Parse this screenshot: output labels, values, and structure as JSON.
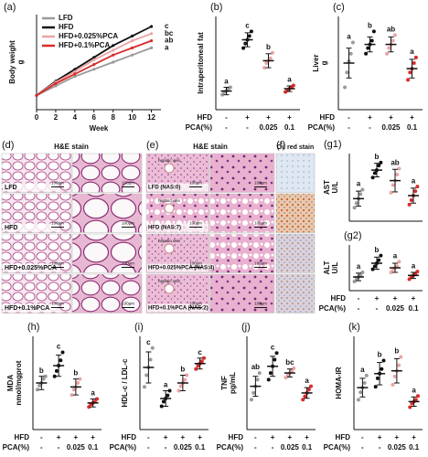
{
  "chart_data": [
    {
      "type": "line",
      "panel": "(a)",
      "ylabel": "Body weight",
      "yunit": "g",
      "xlabel": "Week",
      "x": [
        0,
        2,
        4,
        6,
        8,
        10,
        12
      ],
      "xlim": [
        0,
        13
      ],
      "xticks": [
        0,
        2,
        4,
        6,
        8,
        10,
        12
      ],
      "ylim": [
        15,
        35
      ],
      "series": [
        {
          "name": "LFD",
          "color": "#9a9a9a",
          "values": [
            18,
            20,
            22,
            23.5,
            25,
            26.5,
            28
          ],
          "letter": "a"
        },
        {
          "name": "HFD",
          "color": "#111111",
          "values": [
            18,
            21,
            23.5,
            26,
            28.5,
            30.5,
            32.5
          ],
          "letter": "c"
        },
        {
          "name": "HFD+0.025%PCA",
          "color": "#eba3a3",
          "values": [
            18,
            20.8,
            23,
            25.5,
            27.5,
            29.5,
            31
          ],
          "letter": "bc"
        },
        {
          "name": "HFD+0.1%PCA",
          "color": "#d92b2b",
          "values": [
            18,
            20.5,
            22.5,
            24.5,
            26.5,
            28,
            29.5
          ],
          "letter": "ab"
        }
      ]
    },
    {
      "type": "dotplot",
      "panel": "(b)",
      "ylabel": "Intraperitoneal fat",
      "ylim": [
        0.4,
        2.4
      ],
      "groups": [
        {
          "color": "#9a9a9a",
          "mean": 0.8,
          "sd": 0.08,
          "points": [
            0.72,
            0.78,
            0.8,
            0.85,
            0.88
          ],
          "letter": "a"
        },
        {
          "color": "#111111",
          "mean": 1.9,
          "sd": 0.15,
          "points": [
            1.72,
            1.82,
            1.9,
            1.98,
            2.08
          ],
          "letter": "c"
        },
        {
          "color": "#eba3a3",
          "mean": 1.45,
          "sd": 0.15,
          "points": [
            1.3,
            1.4,
            1.45,
            1.5,
            1.62
          ],
          "letter": "b"
        },
        {
          "color": "#d92b2b",
          "mean": 0.85,
          "sd": 0.06,
          "points": [
            0.78,
            0.82,
            0.85,
            0.88,
            0.92
          ],
          "letter": "a"
        }
      ],
      "rows": [
        {
          "label": "HFD",
          "cells": [
            "-",
            "+",
            "+",
            "+"
          ]
        },
        {
          "label": "PCA(%)",
          "cells": [
            "-",
            "-",
            "0.025",
            "0.1"
          ]
        }
      ]
    },
    {
      "type": "dotplot",
      "panel": "(c)",
      "ylabel": "Liver",
      "yunit": "g",
      "ylim": [
        0.6,
        1.1
      ],
      "groups": [
        {
          "color": "#9a9a9a",
          "mean": 0.85,
          "sd": 0.08,
          "points": [
            0.72,
            0.8,
            0.86,
            0.9,
            0.96
          ],
          "letter": "a"
        },
        {
          "color": "#111111",
          "mean": 0.95,
          "sd": 0.04,
          "points": [
            0.9,
            0.93,
            0.95,
            0.97,
            1.02
          ],
          "letter": "b"
        },
        {
          "color": "#eba3a3",
          "mean": 0.95,
          "sd": 0.04,
          "points": [
            0.9,
            0.93,
            0.95,
            0.97,
            1.0
          ],
          "letter": "ab"
        },
        {
          "color": "#d92b2b",
          "mean": 0.82,
          "sd": 0.05,
          "points": [
            0.76,
            0.8,
            0.82,
            0.85,
            0.88
          ],
          "letter": "a"
        }
      ],
      "rows": [
        {
          "label": "HFD",
          "cells": [
            "-",
            "+",
            "+",
            "+"
          ]
        },
        {
          "label": "PCA(%)",
          "cells": [
            "-",
            "-",
            "0.025",
            "0.1"
          ]
        }
      ]
    },
    {
      "type": "dotplot",
      "panel": "(g1)",
      "ylabel": "AST",
      "yunit": "U/L",
      "ylim": [
        50,
        140
      ],
      "groups": [
        {
          "color": "#9a9a9a",
          "mean": 80,
          "sd": 10,
          "points": [
            68,
            74,
            80,
            86,
            92
          ],
          "letter": "a"
        },
        {
          "color": "#111111",
          "mean": 118,
          "sd": 9,
          "points": [
            108,
            114,
            118,
            124,
            128
          ],
          "letter": "b"
        },
        {
          "color": "#eba3a3",
          "mean": 104,
          "sd": 15,
          "points": [
            88,
            98,
            104,
            112,
            120
          ],
          "letter": "ab"
        },
        {
          "color": "#d92b2b",
          "mean": 84,
          "sd": 10,
          "points": [
            72,
            78,
            84,
            90,
            96
          ],
          "letter": "a"
        }
      ]
    },
    {
      "type": "dotplot",
      "panel": "(g2)",
      "ylabel": "ALT",
      "yunit": "U/L",
      "ylim": [
        10,
        70
      ],
      "groups": [
        {
          "color": "#9a9a9a",
          "mean": 28,
          "sd": 5,
          "points": [
            22,
            26,
            28,
            30,
            34
          ],
          "letter": "a"
        },
        {
          "color": "#111111",
          "mean": 46,
          "sd": 8,
          "points": [
            38,
            42,
            46,
            50,
            56
          ],
          "letter": "b"
        },
        {
          "color": "#eba3a3",
          "mean": 40,
          "sd": 6,
          "points": [
            34,
            38,
            40,
            42,
            48
          ],
          "letter": "a"
        },
        {
          "color": "#d92b2b",
          "mean": 30,
          "sd": 4,
          "points": [
            25,
            28,
            30,
            32,
            35
          ],
          "letter": "a"
        }
      ],
      "rows": [
        {
          "label": "HFD",
          "cells": [
            "-",
            "+",
            "+",
            "+"
          ]
        },
        {
          "label": "PCA(%)",
          "cells": [
            "-",
            "-",
            "0.025",
            "0.1"
          ]
        }
      ]
    },
    {
      "type": "dotplot",
      "panel": "(h)",
      "ylabel": "MDA",
      "yunit": "nmol/mgprot",
      "ylim": [
        0,
        7
      ],
      "groups": [
        {
          "color": "#9a9a9a",
          "mean": 3.5,
          "sd": 0.5,
          "points": [
            3.0,
            3.3,
            3.5,
            3.8,
            4.0
          ],
          "letter": "b"
        },
        {
          "color": "#111111",
          "mean": 4.8,
          "sd": 0.8,
          "points": [
            4.0,
            4.4,
            4.8,
            5.2,
            5.8
          ],
          "letter": "c"
        },
        {
          "color": "#eba3a3",
          "mean": 3.2,
          "sd": 0.6,
          "points": [
            2.6,
            3.0,
            3.2,
            3.5,
            3.8
          ],
          "letter": "b"
        },
        {
          "color": "#d92b2b",
          "mean": 2.0,
          "sd": 0.3,
          "points": [
            1.7,
            1.9,
            2.0,
            2.1,
            2.3
          ],
          "letter": "a"
        }
      ],
      "rows": [
        {
          "label": "HFD",
          "cells": [
            "-",
            "+",
            "+",
            "+"
          ]
        },
        {
          "label": "PCA(%)",
          "cells": [
            "-",
            "-",
            "0.025",
            "0.1"
          ]
        }
      ]
    },
    {
      "type": "dotplot",
      "panel": "(i)",
      "ylabel": "HDL-c / LDL-c",
      "ylim": [
        6,
        18
      ],
      "groups": [
        {
          "color": "#9a9a9a",
          "mean": 14,
          "sd": 2,
          "points": [
            11.5,
            13,
            14,
            15,
            16.5
          ],
          "letter": "c"
        },
        {
          "color": "#111111",
          "mean": 10,
          "sd": 1,
          "points": [
            9,
            9.6,
            10,
            10.4,
            11
          ],
          "letter": "a"
        },
        {
          "color": "#eba3a3",
          "mean": 12,
          "sd": 1,
          "points": [
            11,
            11.6,
            12,
            12.4,
            13
          ],
          "letter": "b"
        },
        {
          "color": "#d92b2b",
          "mean": 14.5,
          "sd": 0.7,
          "points": [
            13.8,
            14.2,
            14.5,
            14.8,
            15.2
          ],
          "letter": "c"
        }
      ],
      "rows": [
        {
          "label": "HFD",
          "cells": [
            "-",
            "+",
            "+",
            "+"
          ]
        },
        {
          "label": "PCA(%)",
          "cells": [
            "-",
            "-",
            "0.025",
            "0.1"
          ]
        }
      ]
    },
    {
      "type": "dotplot",
      "panel": "(j)",
      "ylabel": "TNF",
      "yunit": "pg/mL",
      "ylim": [
        2,
        16
      ],
      "groups": [
        {
          "color": "#9a9a9a",
          "mean": 8.5,
          "sd": 1.5,
          "points": [
            6.5,
            7.5,
            8.5,
            9.5,
            10.5
          ],
          "letter": "ab"
        },
        {
          "color": "#111111",
          "mean": 11.5,
          "sd": 1.5,
          "points": [
            9.5,
            10.5,
            11.5,
            12.5,
            13.5
          ],
          "letter": "c"
        },
        {
          "color": "#eba3a3",
          "mean": 10.5,
          "sd": 0.6,
          "points": [
            9.8,
            10.2,
            10.5,
            10.8,
            11.2
          ],
          "letter": "bc"
        },
        {
          "color": "#d92b2b",
          "mean": 7.5,
          "sd": 0.8,
          "points": [
            6.5,
            7,
            7.5,
            8,
            8.5
          ],
          "letter": "a"
        }
      ],
      "rows": [
        {
          "label": "HFD",
          "cells": [
            "-",
            "+",
            "+",
            "+"
          ]
        },
        {
          "label": "PCA(%)",
          "cells": [
            "-",
            "-",
            "0.025",
            "0.1"
          ]
        }
      ]
    },
    {
      "type": "dotplot",
      "panel": "(k)",
      "ylabel": "HOMA-IR",
      "ylim": [
        2,
        12
      ],
      "groups": [
        {
          "color": "#9a9a9a",
          "mean": 6.5,
          "sd": 1,
          "points": [
            5.2,
            6,
            6.5,
            7,
            7.8
          ],
          "letter": "a"
        },
        {
          "color": "#111111",
          "mean": 8,
          "sd": 1.2,
          "points": [
            6.6,
            7.5,
            8,
            8.5,
            9.4
          ],
          "letter": "b"
        },
        {
          "color": "#eba3a3",
          "mean": 8.3,
          "sd": 1.3,
          "points": [
            6.8,
            7.7,
            8.3,
            8.9,
            9.8
          ],
          "letter": "b"
        },
        {
          "color": "#d92b2b",
          "mean": 5,
          "sd": 0.5,
          "points": [
            4.4,
            4.8,
            5,
            5.2,
            5.6
          ],
          "letter": "a"
        }
      ],
      "rows": [
        {
          "label": "HFD",
          "cells": [
            "-",
            "+",
            "+",
            "+"
          ]
        },
        {
          "label": "PCA(%)",
          "cells": [
            "-",
            "-",
            "0.025",
            "0.1"
          ]
        }
      ]
    }
  ],
  "histology": {
    "d": {
      "panel": "(d)",
      "stain": "H&E stain",
      "rows": [
        "LFD",
        "HFD",
        "HFD+0.025%PCA",
        "HFD+0.1%PCA"
      ]
    },
    "e": {
      "panel": "(e)",
      "stain": "H&E stain",
      "rows": [
        "LFD (NAS:0)",
        "HFD (NAS:7)",
        "HFD+0.025%PCA (NAS:4)",
        "HFD+0.1%PCA (NAS:2)"
      ]
    },
    "f": {
      "panel": "(f)",
      "stain": "Oil red stain"
    },
    "scale": "100μm",
    "vein": "hepatic vein"
  }
}
